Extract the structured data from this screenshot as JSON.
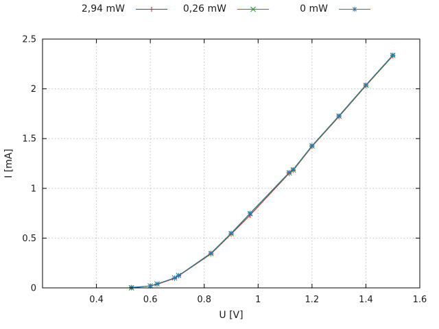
{
  "chart_data": {
    "type": "line",
    "title": "",
    "xlabel": "U [V]",
    "ylabel": "I [mA]",
    "xlim": [
      0.2,
      1.6
    ],
    "ylim": [
      0,
      2.5
    ],
    "grid": true,
    "legend_position": "top-outside-horizontal",
    "xticks": {
      "values": [
        0.4,
        0.6,
        0.8,
        1,
        1.2,
        1.4,
        1.6
      ],
      "labels": [
        "0.4",
        "0.6",
        "0.8",
        "1",
        "1.2",
        "1.4",
        "1.6"
      ]
    },
    "yticks": {
      "values": [
        0,
        0.5,
        1,
        1.5,
        2,
        2.5
      ],
      "labels": [
        "0",
        "0.5",
        "1",
        "1.5",
        "2",
        "2.5"
      ]
    },
    "colors": {
      "grid": "#bdbdbd",
      "border": "#000000",
      "text": "#1a1a1a"
    },
    "series": [
      {
        "name": "2,94 mW",
        "color": "#e01010",
        "marker": "plus",
        "x": [
          0.53,
          0.6,
          0.625,
          0.69,
          0.705,
          0.825,
          0.9,
          0.97,
          1.115,
          1.13,
          1.2,
          1.3,
          1.4,
          1.5
        ],
        "y": [
          0.0,
          0.02,
          0.035,
          0.095,
          0.12,
          0.34,
          0.54,
          0.73,
          1.15,
          1.18,
          1.42,
          1.72,
          2.03,
          2.33
        ]
      },
      {
        "name": "0,26 mW",
        "color": "#18a018",
        "marker": "cross",
        "x": [
          0.53,
          0.6,
          0.625,
          0.69,
          0.705,
          0.825,
          0.9,
          0.97,
          1.115,
          1.13,
          1.2,
          1.3,
          1.4,
          1.5
        ],
        "y": [
          0.0,
          0.02,
          0.04,
          0.1,
          0.125,
          0.345,
          0.545,
          0.745,
          1.155,
          1.185,
          1.425,
          1.725,
          2.035,
          2.335
        ]
      },
      {
        "name": "0 mW",
        "color": "#2878b4",
        "marker": "asterisk",
        "x": [
          0.53,
          0.6,
          0.625,
          0.69,
          0.705,
          0.825,
          0.9,
          0.97,
          1.115,
          1.13,
          1.2,
          1.3,
          1.4,
          1.5
        ],
        "y": [
          0.005,
          0.02,
          0.04,
          0.1,
          0.125,
          0.35,
          0.55,
          0.75,
          1.16,
          1.19,
          1.43,
          1.73,
          2.04,
          2.34
        ]
      }
    ]
  }
}
